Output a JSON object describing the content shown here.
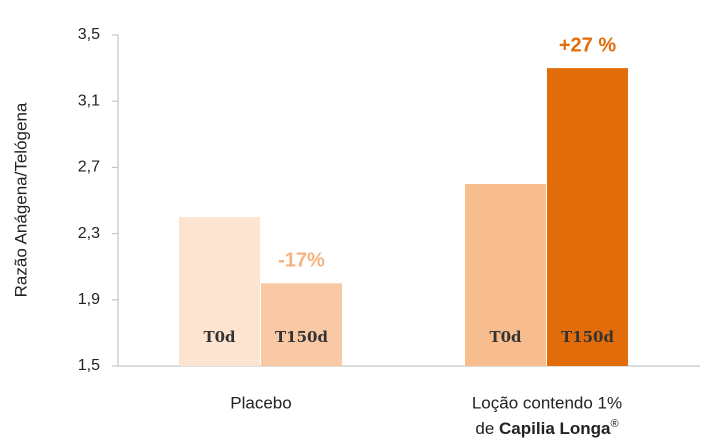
{
  "chart_data": {
    "type": "bar",
    "y_label": "Razão Anágena/Telógena",
    "categories": [
      "Placebo",
      "Loção contendo 1%"
    ],
    "category_subtitle": [
      "de",
      "Capilia Longa",
      "®"
    ],
    "series": [
      {
        "name": "T0d",
        "values": [
          2.4,
          2.6
        ],
        "colors": [
          "#fde4d0",
          "#f8bd8e"
        ]
      },
      {
        "name": "T150d",
        "values": [
          2.0,
          3.3
        ],
        "colors": [
          "#f9c8a4",
          "#e36c0a"
        ]
      }
    ],
    "annotations": [
      {
        "text": "-17%",
        "category": 0,
        "color": "#f6b27f"
      },
      {
        "text": "+27 %",
        "category": 1,
        "color": "#e36c0a"
      }
    ],
    "ylim": [
      1.5,
      3.5
    ],
    "yticks": [
      {
        "value": 1.5,
        "label": "1,5"
      },
      {
        "value": 1.9,
        "label": "1,9"
      },
      {
        "value": 2.3,
        "label": "2,3"
      },
      {
        "value": 2.7,
        "label": "2,7"
      },
      {
        "value": 3.1,
        "label": "3,1"
      },
      {
        "value": 3.5,
        "label": "3,5"
      }
    ]
  }
}
